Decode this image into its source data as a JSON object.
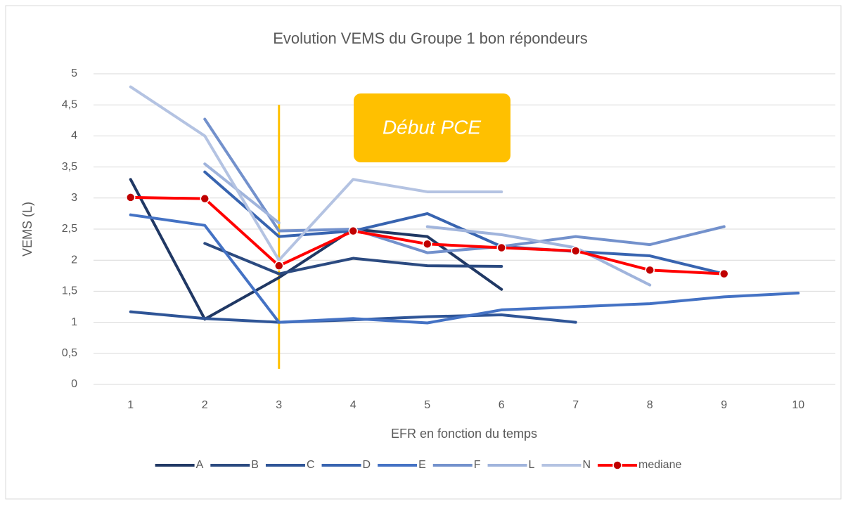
{
  "chart_data": {
    "type": "line",
    "title": "Evolution VEMS du Groupe 1 bon répondeurs",
    "x_label": "EFR en fonction du temps",
    "y_label": "VEMS (L)",
    "categories": [
      "1",
      "2",
      "3",
      "4",
      "5",
      "6",
      "7",
      "8",
      "9",
      "10"
    ],
    "ylim": [
      0,
      5
    ],
    "yticks": [
      0,
      {
        "value": 0.5,
        "label": "0,5"
      },
      1,
      {
        "value": 1.5,
        "label": "1,5"
      },
      2,
      {
        "value": 2.5,
        "label": "2,5"
      },
      3,
      {
        "value": 3.5,
        "label": "3,5"
      },
      4,
      {
        "value": 4.5,
        "label": "4,5"
      },
      5
    ],
    "grid": true,
    "legend": "bottom",
    "series": [
      {
        "name": "A",
        "color": "#203864",
        "values": [
          3.3,
          1.05,
          1.72,
          2.5,
          2.38,
          1.53,
          null,
          null,
          null,
          null
        ]
      },
      {
        "name": "B",
        "color": "#2b4a80",
        "values": [
          null,
          2.27,
          1.78,
          2.03,
          1.91,
          1.9,
          null,
          null,
          null,
          null
        ]
      },
      {
        "name": "C",
        "color": "#2f5597",
        "values": [
          1.17,
          1.06,
          1.0,
          1.04,
          1.09,
          1.12,
          1.0,
          null,
          null,
          null
        ]
      },
      {
        "name": "D",
        "color": "#3864b0",
        "values": [
          null,
          3.42,
          2.38,
          2.47,
          2.75,
          2.22,
          2.14,
          2.07,
          1.78,
          null
        ]
      },
      {
        "name": "E",
        "color": "#4472c4",
        "values": [
          2.73,
          2.56,
          1.0,
          1.06,
          0.99,
          1.2,
          1.25,
          1.3,
          1.41,
          1.47
        ]
      },
      {
        "name": "F",
        "color": "#7391cc",
        "values": [
          null,
          4.27,
          2.47,
          2.5,
          2.12,
          2.22,
          2.38,
          2.25,
          2.54,
          null
        ]
      },
      {
        "name": "L",
        "color": "#a0b4dc",
        "values": [
          null,
          3.55,
          2.6,
          null,
          2.54,
          2.41,
          2.2,
          1.6,
          null,
          null
        ]
      },
      {
        "name": "N",
        "color": "#b4c3e2",
        "values": [
          4.79,
          4.0,
          2.0,
          3.3,
          3.1,
          3.1,
          null,
          null,
          null,
          null
        ]
      },
      {
        "name": "mediane",
        "color": "#ff0000",
        "marker_color": "#c00000",
        "values": [
          3.01,
          2.99,
          1.91,
          2.47,
          2.26,
          2.2,
          2.15,
          1.84,
          1.78,
          null
        ]
      }
    ],
    "vline": {
      "x": 3,
      "y": [
        0.25,
        4.5
      ],
      "color": "#ffc000"
    },
    "annotation": {
      "text": "Début PCE",
      "color": "#ffc000"
    }
  }
}
